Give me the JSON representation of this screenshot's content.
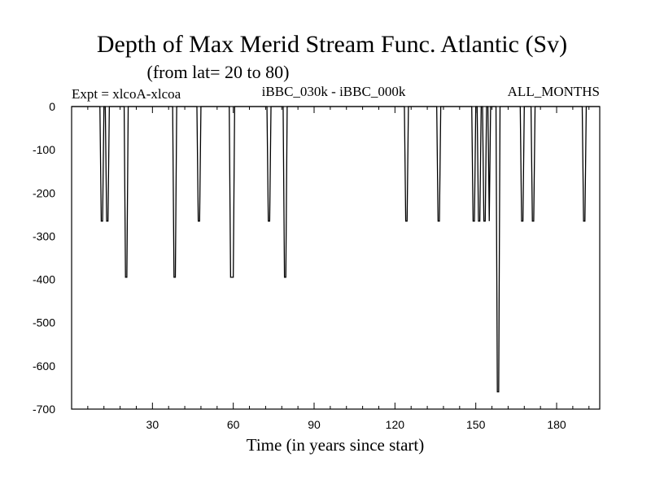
{
  "chart_data": {
    "type": "line",
    "title": "Depth of Max Merid Stream Func. Atlantic (Sv)",
    "subtitle": "(from lat= 20 to 80)",
    "left_label": "Expt = xlcoA-xlcoa",
    "center_label": "iBBC_030k - iBBC_000k",
    "right_label": "ALL_MONTHS",
    "xlabel": "Time (in years since start)",
    "ylabel": "",
    "xlim": [
      0,
      196
    ],
    "ylim": [
      -700,
      0
    ],
    "x_ticks": [
      30,
      60,
      90,
      120,
      150,
      180
    ],
    "y_ticks": [
      0,
      -100,
      -200,
      -300,
      -400,
      -500,
      -600,
      -700
    ],
    "grid": false,
    "series": [
      {
        "color": "#000000",
        "x": [
          0,
          10.5,
          11,
          11.5,
          12,
          12.5,
          13,
          13.5,
          14,
          14.5,
          19.5,
          20,
          20.5,
          21,
          21.5,
          37.5,
          38,
          38.5,
          39,
          46.5,
          47,
          47.5,
          48,
          58.5,
          59,
          59.5,
          60,
          60.5,
          61,
          72.5,
          73,
          73.5,
          74,
          78.5,
          79,
          79.5,
          80,
          123.5,
          124,
          124.5,
          125,
          135.5,
          136,
          136.5,
          137,
          148.5,
          149,
          149.5,
          150,
          150.5,
          151,
          151.5,
          152,
          152.5,
          153,
          153.5,
          154,
          154.5,
          155,
          155.5,
          157.5,
          158,
          158.5,
          159,
          159.5,
          166.5,
          167,
          167.5,
          168,
          170.5,
          171,
          171.5,
          172,
          189.5,
          190,
          190.5,
          191,
          196
        ],
        "y": [
          0,
          0,
          -265,
          -265,
          0,
          0,
          -265,
          -265,
          0,
          0,
          0,
          -395,
          -395,
          0,
          0,
          0,
          -395,
          -395,
          0,
          0,
          -265,
          -265,
          0,
          0,
          -395,
          -395,
          -395,
          0,
          0,
          0,
          -265,
          -265,
          0,
          0,
          -395,
          -395,
          0,
          0,
          -265,
          -265,
          0,
          0,
          -265,
          -265,
          0,
          0,
          -265,
          -265,
          0,
          0,
          -265,
          -265,
          0,
          0,
          -265,
          -265,
          0,
          0,
          -265,
          0,
          0,
          -660,
          -660,
          0,
          0,
          0,
          -265,
          -265,
          0,
          0,
          -265,
          -265,
          0,
          0,
          -265,
          -265,
          0,
          0
        ]
      }
    ]
  }
}
